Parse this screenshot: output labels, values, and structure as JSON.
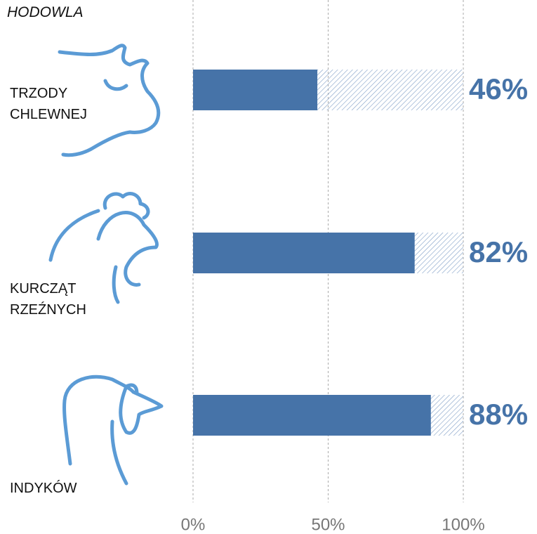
{
  "chart_data": {
    "type": "bar",
    "orientation": "horizontal",
    "title": "HODOWLA",
    "categories": [
      "TRZODY CHLEWNEJ",
      "KURCZĄT RZEŹNYCH",
      "INDYKÓW"
    ],
    "values": [
      46,
      82,
      88
    ],
    "value_labels": [
      "46%",
      "82%",
      "88%"
    ],
    "color": "#4673a8",
    "remainder_color": "#7f9ec6",
    "xlim": [
      0,
      100
    ],
    "xticks": [
      {
        "value": 0,
        "label": "0%"
      },
      {
        "value": 50,
        "label": "50%"
      },
      {
        "value": 100,
        "label": "100%"
      }
    ],
    "grid": true
  }
}
